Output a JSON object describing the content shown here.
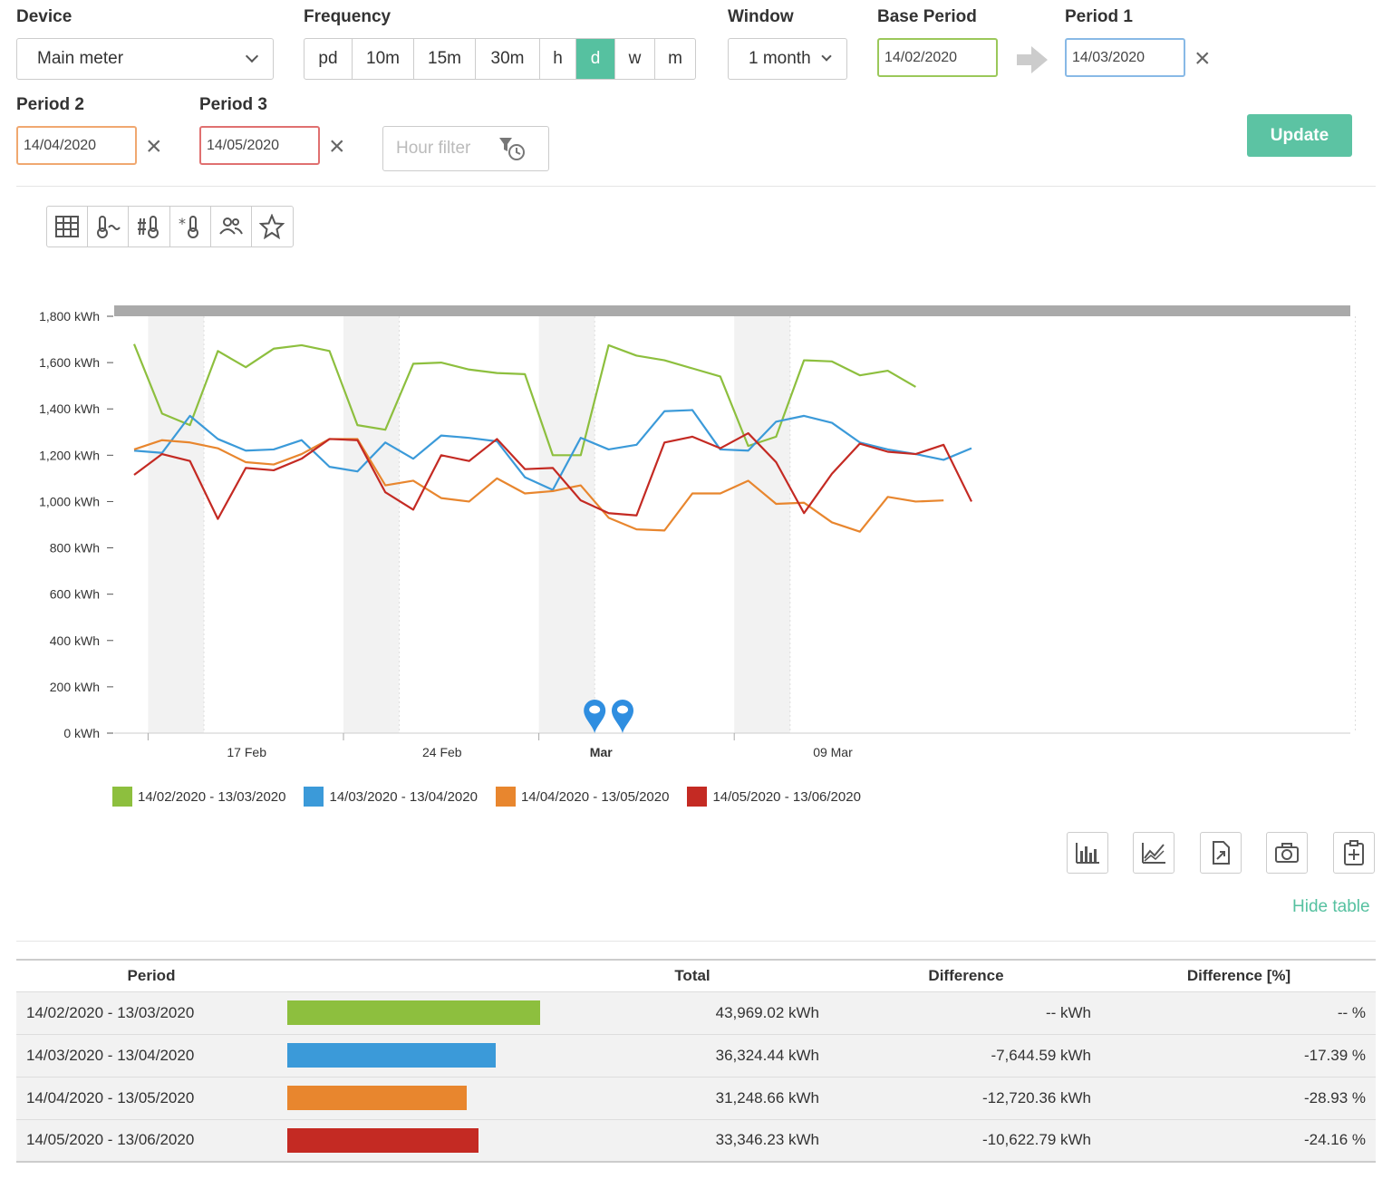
{
  "controls": {
    "device_label": "Device",
    "device_value": "Main meter",
    "frequency_label": "Frequency",
    "frequency_options": [
      "pd",
      "10m",
      "15m",
      "30m",
      "h",
      "d",
      "w",
      "m"
    ],
    "frequency_active": "d",
    "window_label": "Window",
    "window_value": "1 month",
    "base_label": "Base Period",
    "base_value": "14/02/2020",
    "period1_label": "Period 1",
    "period1_value": "14/03/2020",
    "period2_label": "Period 2",
    "period2_value": "14/04/2020",
    "period3_label": "Period 3",
    "period3_value": "14/05/2020",
    "hour_filter_placeholder": "Hour filter",
    "update_label": "Update",
    "clear_symbol": "×"
  },
  "chart_toolbar_icons": [
    "table-grid-icon",
    "temperature-icon",
    "degree-days-icon",
    "weather-icon",
    "occupancy-icon",
    "favorite-star-icon"
  ],
  "chart_data": {
    "type": "line",
    "ylabel_unit": "kWh",
    "ylim": [
      0,
      1800
    ],
    "yticks": [
      "0 kWh",
      "200 kWh",
      "400 kWh",
      "600 kWh",
      "800 kWh",
      "1,000 kWh",
      "1,200 kWh",
      "1,400 kWh",
      "1,600 kWh",
      "1,800 kWh"
    ],
    "xticks": [
      {
        "label": "17 Feb",
        "day": 3,
        "bold": false
      },
      {
        "label": "24 Feb",
        "day": 10,
        "bold": false
      },
      {
        "label": "Mar",
        "day": 16,
        "bold": true
      },
      {
        "label": "09 Mar",
        "day": 24,
        "bold": false
      }
    ],
    "weekend_days": [
      1,
      8,
      15,
      22
    ],
    "annotation_days": [
      16.5,
      17.5
    ],
    "grid": false,
    "legend_position": "bottom-left",
    "series": [
      {
        "name": "14/02/2020 - 13/03/2020",
        "color": "#8dbf3e",
        "values": [
          1680,
          1380,
          1330,
          1650,
          1580,
          1660,
          1675,
          1650,
          1330,
          1310,
          1595,
          1600,
          1570,
          1555,
          1550,
          1200,
          1200,
          1675,
          1630,
          1610,
          1575,
          1540,
          1240,
          1280,
          1610,
          1605,
          1545,
          1565,
          1495
        ]
      },
      {
        "name": "14/03/2020 - 13/04/2020",
        "color": "#3b9ad9",
        "values": [
          1220,
          1210,
          1370,
          1270,
          1220,
          1225,
          1265,
          1150,
          1130,
          1255,
          1185,
          1285,
          1275,
          1260,
          1105,
          1050,
          1275,
          1225,
          1245,
          1390,
          1395,
          1225,
          1220,
          1345,
          1370,
          1340,
          1255,
          1225,
          1205,
          1180,
          1230
        ]
      },
      {
        "name": "14/04/2020 - 13/05/2020",
        "color": "#e8862e",
        "values": [
          1225,
          1265,
          1255,
          1230,
          1170,
          1160,
          1205,
          1270,
          1270,
          1070,
          1090,
          1015,
          1000,
          1100,
          1035,
          1045,
          1070,
          930,
          880,
          875,
          1035,
          1035,
          1090,
          990,
          995,
          910,
          870,
          1020,
          1000,
          1005
        ]
      },
      {
        "name": "14/05/2020 - 13/06/2020",
        "color": "#c42a23",
        "values": [
          1115,
          1205,
          1175,
          925,
          1145,
          1135,
          1185,
          1270,
          1265,
          1040,
          965,
          1200,
          1175,
          1270,
          1140,
          1145,
          1005,
          950,
          940,
          1255,
          1280,
          1230,
          1295,
          1170,
          950,
          1120,
          1250,
          1215,
          1205,
          1245,
          1000
        ]
      }
    ]
  },
  "export_icons": [
    "bar-chart-icon",
    "line-chart-icon",
    "export-file-icon",
    "camera-icon",
    "clipboard-add-icon"
  ],
  "hide_table_label": "Hide table",
  "table": {
    "headers": {
      "period": "Period",
      "total": "Total",
      "difference": "Difference",
      "difference_pct": "Difference [%]"
    },
    "rows": [
      {
        "period": "14/02/2020 - 13/03/2020",
        "fraction": 1.0,
        "color": "#8dbf3e",
        "total": "43,969.02 kWh",
        "difference": "-- kWh",
        "difference_pct": "-- %"
      },
      {
        "period": "14/03/2020 - 13/04/2020",
        "fraction": 0.826,
        "color": "#3b9ad9",
        "total": "36,324.44 kWh",
        "difference": "-7,644.59 kWh",
        "difference_pct": "-17.39 %"
      },
      {
        "period": "14/04/2020 - 13/05/2020",
        "fraction": 0.711,
        "color": "#e8862e",
        "total": "31,248.66 kWh",
        "difference": "-12,720.36 kWh",
        "difference_pct": "-28.93 %"
      },
      {
        "period": "14/05/2020 - 13/06/2020",
        "fraction": 0.758,
        "color": "#c42a23",
        "total": "33,346.23 kWh",
        "difference": "-10,622.79 kWh",
        "difference_pct": "-24.16 %"
      }
    ]
  }
}
